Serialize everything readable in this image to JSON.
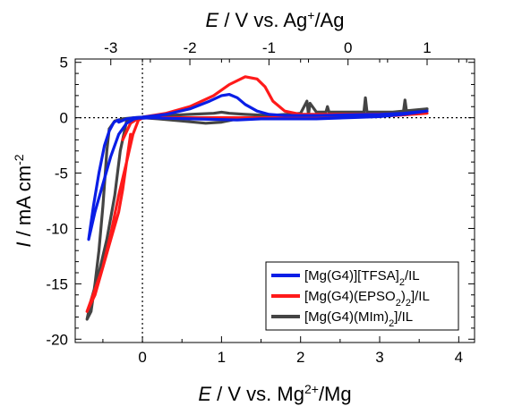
{
  "chart_data": {
    "type": "line",
    "xlabel": {
      "italic": "E",
      "rest": " / V vs. Mg",
      "sup": "2+",
      "tail": "/Mg"
    },
    "x2label": {
      "italic": "E",
      "rest": " / V vs. Ag",
      "sup": "+",
      "tail": "/Ag"
    },
    "ylabel": {
      "italic": "I",
      "rest": " / mA cm",
      "sup": "-2"
    },
    "xlim": [
      -0.85,
      4.2
    ],
    "ylim": [
      -20.3,
      5.3
    ],
    "x2_offset": -2.6,
    "xticks": [
      0,
      1,
      2,
      3,
      4
    ],
    "x2ticks": [
      -3,
      -2,
      -1,
      0,
      1
    ],
    "yticks": [
      5,
      0,
      -5,
      -10,
      -15,
      -20
    ],
    "reference_lines": {
      "x": 0,
      "y": 0,
      "style": "dotted"
    },
    "legend_position": "bottom-right",
    "series": [
      {
        "name": "[Mg(G4)][TFSA]2/IL",
        "legend_parts": [
          [
            "[Mg(G4)][TFSA]",
            false
          ],
          [
            "2",
            true
          ],
          [
            "/IL",
            false
          ]
        ],
        "color": "#0a1ee6",
        "x": [
          -0.3,
          -0.2,
          -0.1,
          0.0,
          0.3,
          0.6,
          0.85,
          1.0,
          1.1,
          1.2,
          1.3,
          1.45,
          1.6,
          1.8,
          2.2,
          2.6,
          3.0,
          3.3,
          3.6,
          3.3,
          3.0,
          2.6,
          2.2,
          1.8,
          1.5,
          1.2,
          0.9,
          0.6,
          0.3,
          0.1,
          0.0,
          -0.05,
          -0.1,
          -0.15,
          -0.2,
          -0.3,
          -0.4,
          -0.5,
          -0.6,
          -0.68,
          -0.62,
          -0.55,
          -0.48,
          -0.42,
          -0.36,
          -0.3
        ],
        "y": [
          -0.4,
          -0.1,
          0.0,
          0.05,
          0.3,
          0.8,
          1.5,
          2.0,
          2.1,
          1.8,
          1.2,
          0.6,
          0.3,
          0.2,
          0.2,
          0.25,
          0.3,
          0.4,
          0.6,
          0.3,
          0.1,
          0.0,
          -0.1,
          -0.1,
          -0.1,
          -0.2,
          -0.15,
          -0.1,
          -0.05,
          0.0,
          -0.05,
          -0.05,
          -0.1,
          -0.3,
          -0.5,
          -1.5,
          -3.5,
          -6.0,
          -8.5,
          -11.0,
          -8.0,
          -5.0,
          -2.5,
          -1.2,
          -0.4,
          -0.2
        ]
      },
      {
        "name": "[Mg(G4)(EPSO2)2]/IL",
        "legend_parts": [
          [
            "[Mg(G4)(EPSO",
            false
          ],
          [
            "2",
            true
          ],
          [
            ")",
            false
          ],
          [
            "2",
            true
          ],
          [
            "]/IL",
            false
          ]
        ],
        "color": "#ff1a1a",
        "x": [
          -0.25,
          -0.15,
          -0.05,
          0.0,
          0.3,
          0.6,
          0.9,
          1.1,
          1.3,
          1.45,
          1.55,
          1.65,
          1.8,
          2.0,
          2.4,
          2.8,
          3.2,
          3.6,
          3.2,
          2.8,
          2.4,
          2.0,
          1.6,
          1.2,
          0.8,
          0.4,
          0.1,
          0.0,
          -0.05,
          -0.12,
          -0.2,
          -0.3,
          -0.4,
          -0.5,
          -0.6,
          -0.7,
          -0.6,
          -0.5,
          -0.4,
          -0.3,
          -0.25,
          -0.2,
          -0.15
        ],
        "y": [
          -2.0,
          -0.5,
          -0.05,
          0.05,
          0.4,
          1.0,
          2.0,
          3.0,
          3.7,
          3.5,
          2.8,
          1.5,
          0.6,
          0.3,
          0.3,
          0.3,
          0.35,
          0.4,
          0.2,
          0.15,
          0.1,
          0.05,
          0.0,
          0.0,
          0.0,
          0.0,
          0.0,
          -0.05,
          -0.2,
          -1.5,
          -4.0,
          -7.0,
          -10.5,
          -13.5,
          -15.5,
          -17.5,
          -16.0,
          -13.5,
          -11.0,
          -8.5,
          -6.5,
          -4.0,
          -1.5
        ]
      },
      {
        "name": "[Mg(G4)(MIm)2]/IL",
        "legend_parts": [
          [
            "[Mg(G4)(MIm)",
            false
          ],
          [
            "2",
            true
          ],
          [
            "]/IL",
            false
          ]
        ],
        "color": "#444444",
        "x": [
          -0.42,
          -0.35,
          -0.25,
          -0.1,
          0.0,
          0.3,
          0.6,
          0.9,
          1.0,
          1.1,
          1.3,
          1.6,
          2.0,
          2.08,
          2.1,
          2.12,
          2.2,
          2.32,
          2.34,
          2.36,
          2.6,
          2.8,
          2.82,
          2.84,
          3.0,
          3.3,
          3.32,
          3.34,
          3.6,
          3.3,
          3.0,
          2.6,
          2.2,
          1.8,
          1.5,
          1.2,
          1.0,
          0.8,
          0.5,
          0.2,
          0.0,
          -0.1,
          -0.2,
          -0.28,
          -0.35,
          -0.45,
          -0.55,
          -0.65,
          -0.7,
          -0.65,
          -0.6,
          -0.55,
          -0.5,
          -0.47,
          -0.45,
          -0.42
        ],
        "y": [
          -1.0,
          -0.3,
          -0.1,
          0.0,
          0.05,
          0.2,
          0.3,
          0.4,
          0.5,
          0.4,
          0.3,
          0.2,
          0.4,
          1.5,
          0.3,
          1.3,
          0.5,
          0.5,
          1.0,
          0.5,
          0.5,
          0.5,
          1.8,
          0.5,
          0.5,
          0.5,
          1.6,
          0.6,
          0.8,
          0.6,
          0.4,
          0.3,
          0.2,
          0.1,
          0.0,
          -0.1,
          -0.4,
          -0.5,
          -0.3,
          -0.1,
          0.0,
          -0.05,
          -0.3,
          -3.0,
          -7.0,
          -11.0,
          -14.0,
          -16.5,
          -18.2,
          -17.5,
          -15.0,
          -12.0,
          -8.0,
          -5.0,
          -3.0,
          -1.0
        ]
      }
    ]
  }
}
